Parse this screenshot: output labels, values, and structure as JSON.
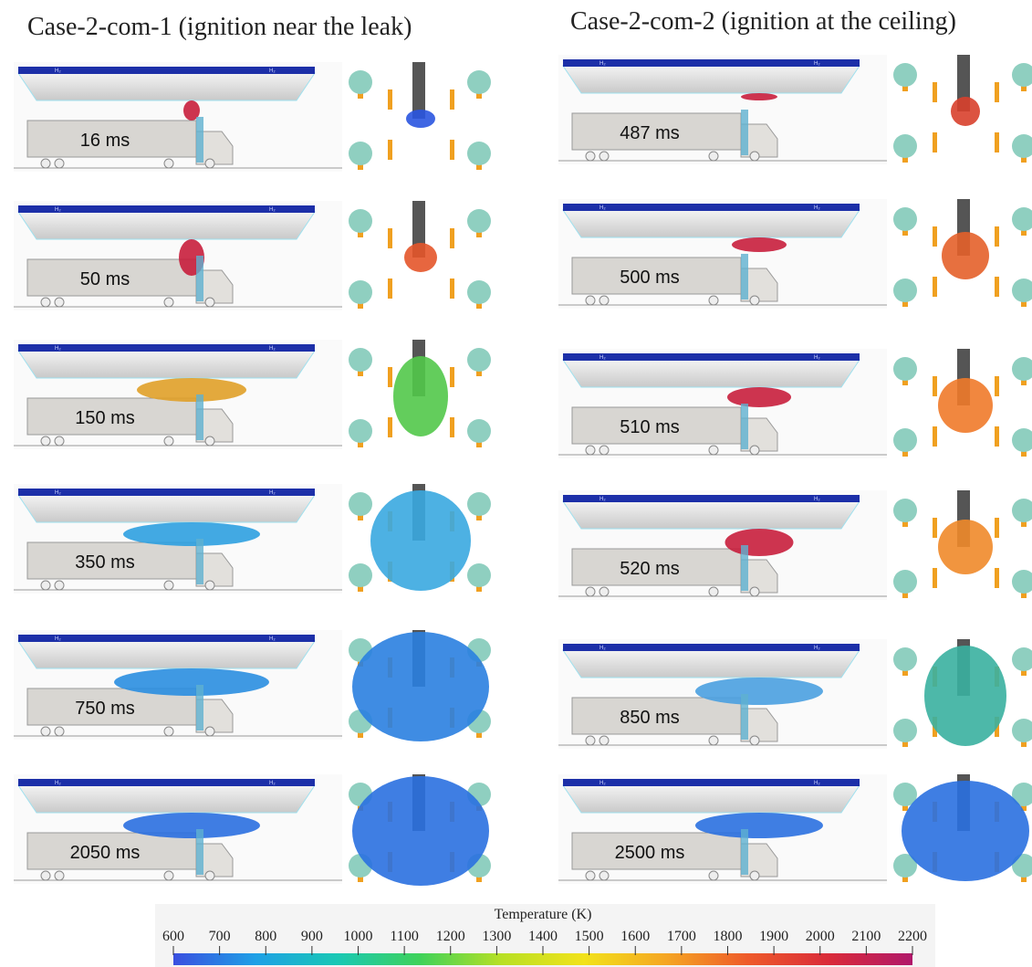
{
  "columns": [
    {
      "title": "Case-2-com-1 (ignition near the leak)",
      "panels": [
        {
          "time": "16 ms"
        },
        {
          "time": "50 ms"
        },
        {
          "time": "150 ms"
        },
        {
          "time": "350 ms"
        },
        {
          "time": "750 ms"
        },
        {
          "time": "2050 ms"
        }
      ]
    },
    {
      "title": "Case-2-com-2 (ignition at the ceiling)",
      "panels": [
        {
          "time": "487 ms"
        },
        {
          "time": "500 ms"
        },
        {
          "time": "510 ms"
        },
        {
          "time": "520 ms"
        },
        {
          "time": "850 ms"
        },
        {
          "time": "2500 ms"
        }
      ]
    }
  ],
  "beam_label": "H₂",
  "colorbar": {
    "title": "Temperature (K)",
    "range": [
      600,
      2200
    ],
    "ticks": [
      600,
      700,
      800,
      900,
      1000,
      1100,
      1200,
      1300,
      1400,
      1500,
      1600,
      1700,
      1800,
      1900,
      2000,
      2100,
      2200
    ],
    "colors": [
      "#3a4fe0",
      "#1ea0e6",
      "#19c8b4",
      "#3ed25a",
      "#b8e024",
      "#f2e21a",
      "#f5a623",
      "#ee5a2a",
      "#d92a3a",
      "#b0186a"
    ]
  }
}
